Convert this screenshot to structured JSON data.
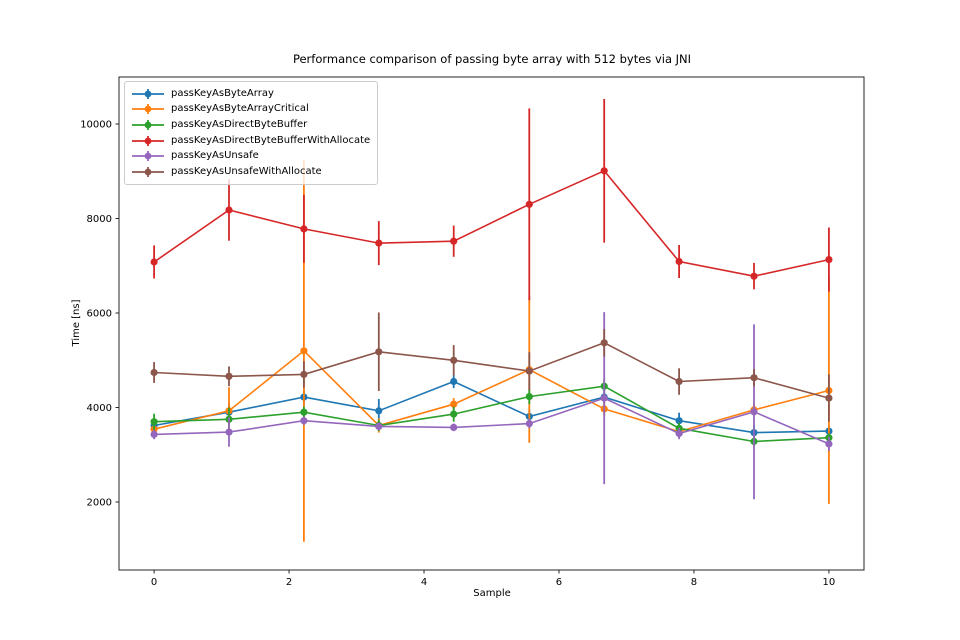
{
  "figure": {
    "background_color": "#ffffff",
    "text_color": "#000000",
    "spine_color": "#262626"
  },
  "chart_data": {
    "type": "line",
    "title": "Performance comparison of passing byte array with 512 bytes via JNI",
    "xlabel": "Sample",
    "ylabel": "Time [ns]",
    "grid": false,
    "legend_position": "upper left",
    "marker": "circle",
    "error_bars": true,
    "x_ticks": [
      0,
      2,
      4,
      6,
      8,
      10
    ],
    "y_ticks": [
      2000,
      4000,
      6000,
      8000,
      10000
    ],
    "xlim": [
      -0.52,
      10.52
    ],
    "ylim": [
      561,
      10995
    ],
    "x": [
      0,
      1.11,
      2.22,
      3.33,
      4.44,
      5.56,
      6.67,
      7.78,
      8.89,
      10
    ],
    "series": [
      {
        "name": "passKeyAsByteArray",
        "color": "#1f77b4",
        "values": [
          3620,
          3900,
          4220,
          3930,
          4550,
          3810,
          4220,
          3720,
          3470,
          3500
        ],
        "errors": [
          150,
          200,
          180,
          250,
          140,
          150,
          160,
          170,
          160,
          130
        ]
      },
      {
        "name": "passKeyAsByteArrayCritical",
        "color": "#ff7f0e",
        "values": [
          3540,
          3930,
          5200,
          3620,
          4070,
          4800,
          3970,
          3490,
          3950,
          4360
        ],
        "errors": [
          120,
          500,
          4040,
          150,
          130,
          1550,
          150,
          130,
          150,
          2400
        ]
      },
      {
        "name": "passKeyAsDirectByteBuffer",
        "color": "#2ca02c",
        "values": [
          3700,
          3750,
          3900,
          3620,
          3860,
          4230,
          4450,
          3560,
          3280,
          3360
        ],
        "errors": [
          170,
          250,
          120,
          120,
          160,
          160,
          150,
          120,
          100,
          90
        ]
      },
      {
        "name": "passKeyAsDirectByteBufferWithAllocate",
        "color": "#d62728",
        "values": [
          7080,
          8180,
          7780,
          7480,
          7520,
          8300,
          9010,
          7090,
          6780,
          7130
        ],
        "errors": [
          350,
          650,
          720,
          465,
          330,
          2030,
          1520,
          350,
          280,
          680
        ]
      },
      {
        "name": "passKeyAsUnsafe",
        "color": "#9467bd",
        "values": [
          3430,
          3480,
          3720,
          3600,
          3580,
          3660,
          4200,
          3450,
          3910,
          3230
        ],
        "errors": [
          100,
          310,
          90,
          80,
          80,
          100,
          1820,
          120,
          1850,
          150
        ]
      },
      {
        "name": "passKeyAsUnsafeWithAllocate",
        "color": "#8c564b",
        "values": [
          4740,
          4660,
          4700,
          5180,
          5000,
          4770,
          5370,
          4550,
          4630,
          4200
        ],
        "errors": [
          220,
          210,
          280,
          830,
          320,
          400,
          290,
          280,
          180,
          500
        ]
      }
    ]
  }
}
